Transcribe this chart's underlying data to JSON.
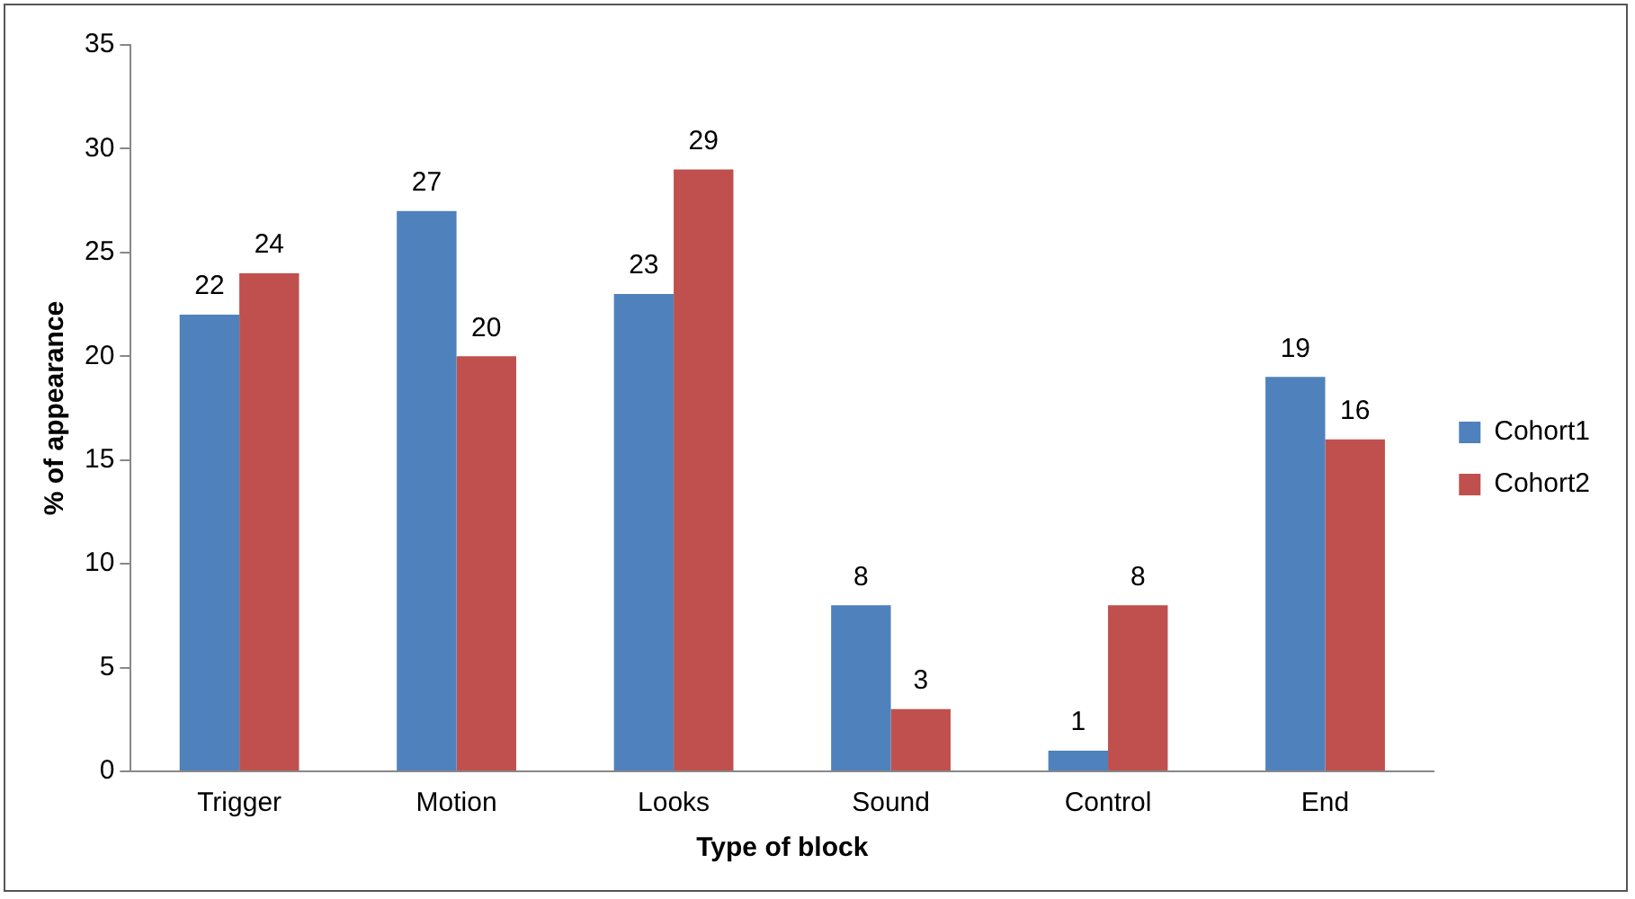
{
  "chart_data": {
    "type": "bar",
    "xlabel": "Type of block",
    "ylabel": "% of appearance",
    "categories": [
      "Trigger",
      "Motion",
      "Looks",
      "Sound",
      "Control",
      "End"
    ],
    "series": [
      {
        "name": "Cohort1",
        "color": "#4f81bd",
        "values": [
          22,
          27,
          23,
          8,
          1,
          19
        ]
      },
      {
        "name": "Cohort2",
        "color": "#c0504d",
        "values": [
          24,
          20,
          29,
          3,
          8,
          16
        ]
      }
    ],
    "ylim": [
      0,
      35
    ],
    "yticks": [
      0,
      5,
      10,
      15,
      20,
      25,
      30,
      35
    ],
    "grid": false,
    "legend": "right",
    "data_labels": true
  }
}
